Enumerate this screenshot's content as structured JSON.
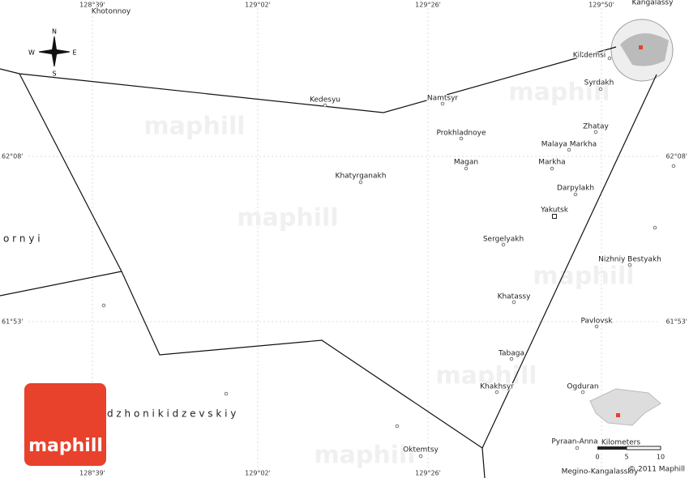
{
  "map": {
    "coords": {
      "top": [
        "128°39'",
        "129°02'",
        "129°26'",
        "129°50'"
      ],
      "bottom": [
        "128°39'",
        "129°02'",
        "129°26'"
      ],
      "left": [
        "62°08'",
        "61°53'"
      ],
      "right": [
        "62°08'",
        "61°53'"
      ]
    },
    "places": [
      "Khotonnoy",
      "Kangalassy",
      "Kil'demsi",
      "Syrdakh",
      "Kedesyu",
      "Namtsyr",
      "Prokhladnoye",
      "Zhatay",
      "Malaya Markha",
      "Magan",
      "Markha",
      "Khatyrganakh",
      "Darpylakh",
      "Yakutsk",
      "Sergelyakh",
      "Nizhniy Bestyakh",
      "Khatassy",
      "Pavlovsk",
      "Tabaga",
      "Khakhsyr",
      "Ogduran",
      "Oktemtsy",
      "Pyraan-Anna",
      "Megino-Kangalasskiy"
    ],
    "regions": [
      "o r n y i",
      "d z h o n i k i d z e v s k i y"
    ],
    "compass": {
      "n": "N",
      "e": "E",
      "s": "S",
      "w": "W"
    },
    "scale": {
      "title": "Kilometers",
      "ticks": [
        "0",
        "5",
        "10"
      ]
    },
    "copyright": "© 2011 Maphill",
    "logo": "maphill",
    "watermark": "maphill"
  }
}
